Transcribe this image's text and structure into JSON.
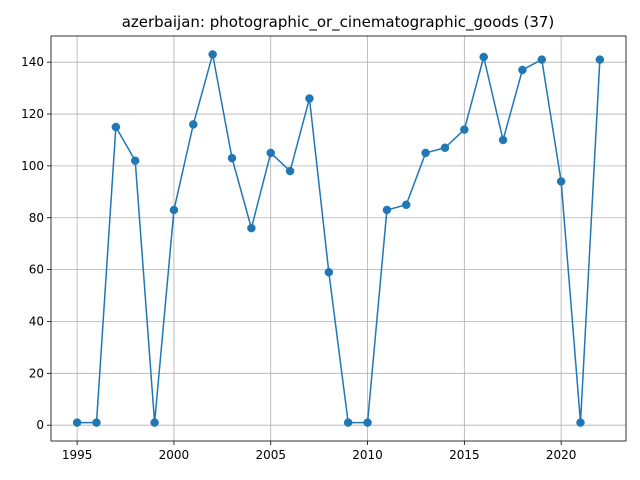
{
  "chart_data": {
    "type": "line",
    "title": "azerbaijan: photographic_or_cinematographic_goods (37)",
    "xlabel": "",
    "ylabel": "",
    "x": [
      1995,
      1996,
      1997,
      1998,
      1999,
      2000,
      2001,
      2002,
      2003,
      2004,
      2005,
      2006,
      2007,
      2008,
      2009,
      2010,
      2011,
      2012,
      2013,
      2014,
      2015,
      2016,
      2017,
      2018,
      2019,
      2020,
      2021,
      2022
    ],
    "series": [
      {
        "values": [
          1,
          1,
          115,
          102,
          1,
          83,
          116,
          143,
          103,
          76,
          105,
          98,
          126,
          59,
          1,
          1,
          83,
          85,
          105,
          107,
          114,
          142,
          110,
          137,
          141,
          94,
          1,
          141
        ]
      }
    ],
    "xlim": [
      1993.65,
      2023.35
    ],
    "ylim": [
      -6.1,
      150.1
    ],
    "xticks": [
      1995,
      2000,
      2005,
      2010,
      2015,
      2020
    ],
    "yticks": [
      0,
      20,
      40,
      60,
      80,
      100,
      120,
      140
    ],
    "grid": true,
    "line_color": "#1f77b4",
    "marker": "circle"
  }
}
